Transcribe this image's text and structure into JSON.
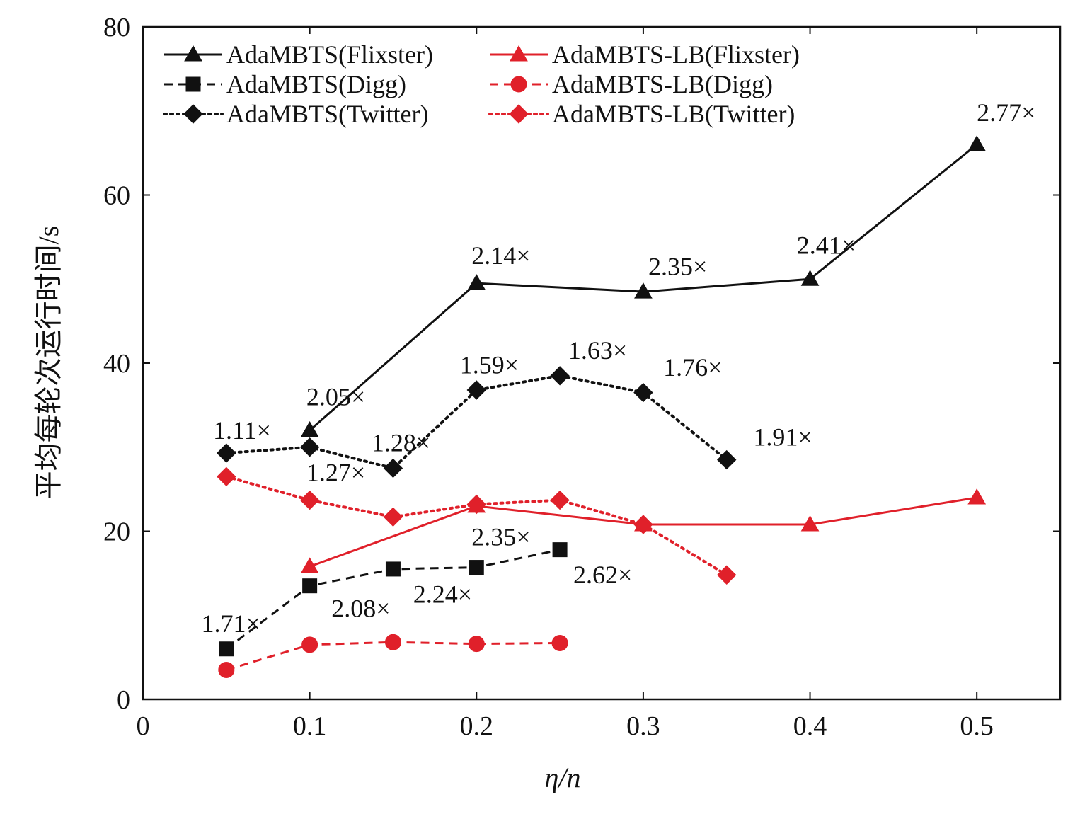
{
  "chart_data": {
    "type": "line",
    "title": "",
    "xlabel": "η/n",
    "ylabel": "平均每轮次运行时间/s",
    "xlim": [
      0,
      0.55
    ],
    "ylim": [
      0,
      80
    ],
    "x_ticks": [
      0,
      0.1,
      0.2,
      0.3,
      0.4,
      0.5
    ],
    "x_tick_labels": [
      "0",
      "0.1",
      "0.2",
      "0.3",
      "0.4",
      "0.5"
    ],
    "y_ticks": [
      0,
      20,
      40,
      60,
      80
    ],
    "y_tick_labels": [
      "0",
      "20",
      "40",
      "60",
      "80"
    ],
    "legend_position": "top-left",
    "series": [
      {
        "name": "AdaMBTS(Flixster)",
        "color": "#111111",
        "dash": "solid",
        "marker": "triangle",
        "x": [
          0.1,
          0.2,
          0.3,
          0.4,
          0.5
        ],
        "y": [
          32.0,
          49.5,
          48.5,
          50.0,
          66.0
        ]
      },
      {
        "name": "AdaMBTS(Digg)",
        "color": "#111111",
        "dash": "dashed",
        "marker": "square",
        "x": [
          0.05,
          0.1,
          0.15,
          0.2,
          0.25
        ],
        "y": [
          6.0,
          13.5,
          15.5,
          15.7,
          17.8
        ]
      },
      {
        "name": "AdaMBTS(Twitter)",
        "color": "#111111",
        "dash": "dotted",
        "marker": "diamond",
        "x": [
          0.05,
          0.1,
          0.15,
          0.2,
          0.25,
          0.3,
          0.35
        ],
        "y": [
          29.3,
          30.0,
          27.5,
          36.8,
          38.5,
          36.5,
          28.5
        ]
      },
      {
        "name": "AdaMBTS-LB(Flixster)",
        "color": "#e0202a",
        "dash": "solid",
        "marker": "triangle",
        "x": [
          0.1,
          0.2,
          0.3,
          0.4,
          0.5
        ],
        "y": [
          15.8,
          23.0,
          20.8,
          20.8,
          24.0
        ]
      },
      {
        "name": "AdaMBTS-LB(Digg)",
        "color": "#e0202a",
        "dash": "dashed",
        "marker": "circle",
        "x": [
          0.05,
          0.1,
          0.15,
          0.2,
          0.25
        ],
        "y": [
          3.5,
          6.5,
          6.8,
          6.6,
          6.7
        ]
      },
      {
        "name": "AdaMBTS-LB(Twitter)",
        "color": "#e0202a",
        "dash": "dotted",
        "marker": "diamond",
        "x": [
          0.05,
          0.1,
          0.15,
          0.2,
          0.25,
          0.3,
          0.35
        ],
        "y": [
          26.5,
          23.7,
          21.7,
          23.2,
          23.7,
          20.8,
          14.8
        ]
      }
    ],
    "annotations": [
      {
        "text": "1.11×",
        "x": 0.042,
        "y": 31.0
      },
      {
        "text": "2.05×",
        "x": 0.098,
        "y": 35.0
      },
      {
        "text": "1.28×",
        "x": 0.137,
        "y": 29.5
      },
      {
        "text": "1.27×",
        "x": 0.098,
        "y": 26.0
      },
      {
        "text": "1.59×",
        "x": 0.19,
        "y": 38.8
      },
      {
        "text": "1.63×",
        "x": 0.255,
        "y": 40.5
      },
      {
        "text": "1.76×",
        "x": 0.312,
        "y": 38.5
      },
      {
        "text": "1.91×",
        "x": 0.366,
        "y": 30.2
      },
      {
        "text": "2.14×",
        "x": 0.197,
        "y": 51.8
      },
      {
        "text": "2.35×",
        "x": 0.303,
        "y": 50.5
      },
      {
        "text": "2.41×",
        "x": 0.392,
        "y": 53.0
      },
      {
        "text": "2.77×",
        "x": 0.5,
        "y": 68.8
      },
      {
        "text": "1.71×",
        "x": 0.035,
        "y": 8.0
      },
      {
        "text": "2.08×",
        "x": 0.113,
        "y": 9.8
      },
      {
        "text": "2.24×",
        "x": 0.162,
        "y": 11.5
      },
      {
        "text": "2.35×",
        "x": 0.197,
        "y": 18.3
      },
      {
        "text": "2.62×",
        "x": 0.258,
        "y": 13.8
      }
    ]
  }
}
